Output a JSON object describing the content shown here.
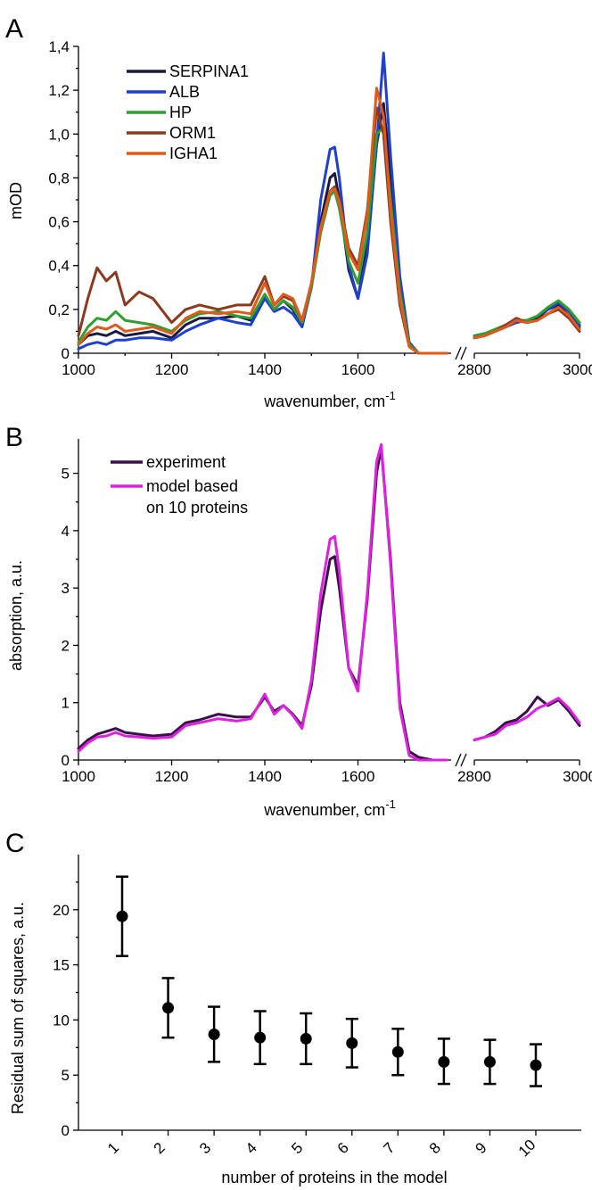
{
  "chart_data": [
    {
      "panel": "A",
      "type": "line",
      "xlabel": "wavenumber, cm",
      "xlabel_sup": "-1",
      "ylabel": "mOD",
      "xlim_left": [
        1000,
        1800
      ],
      "xlim_right": [
        2800,
        3000
      ],
      "ylim": [
        0,
        1.4
      ],
      "x_ticks_left": [
        1000,
        1200,
        1400,
        1600
      ],
      "x_ticks_right": [
        2800,
        3000
      ],
      "x_tick_labels": [
        "1000",
        "1200",
        "1400",
        "1600",
        "2800",
        "3000"
      ],
      "y_ticks": [
        0,
        0.2,
        0.4,
        0.6,
        0.8,
        1.0,
        1.2,
        1.4
      ],
      "y_tick_labels": [
        "0",
        "0,2",
        "0,4",
        "0,6",
        "0,8",
        "1,0",
        "1,2",
        "1,4"
      ],
      "axis_break": true,
      "legend": "top-left",
      "series": [
        {
          "name": "SERPINA1",
          "color": "#1a1a40",
          "x": [
            1000,
            1020,
            1040,
            1060,
            1080,
            1100,
            1130,
            1160,
            1200,
            1230,
            1260,
            1300,
            1340,
            1370,
            1400,
            1420,
            1440,
            1460,
            1480,
            1500,
            1520,
            1540,
            1550,
            1560,
            1580,
            1600,
            1620,
            1640,
            1655,
            1670,
            1690,
            1710,
            1730,
            1760,
            1790
          ],
          "y": [
            0.04,
            0.08,
            0.09,
            0.08,
            0.1,
            0.08,
            0.09,
            0.1,
            0.07,
            0.13,
            0.16,
            0.16,
            0.17,
            0.15,
            0.26,
            0.2,
            0.24,
            0.2,
            0.13,
            0.3,
            0.6,
            0.8,
            0.82,
            0.7,
            0.38,
            0.25,
            0.5,
            0.95,
            1.14,
            0.8,
            0.3,
            0.04,
            0.0,
            0.0,
            0.0
          ],
          "x2": [
            2800,
            2820,
            2840,
            2860,
            2880,
            2900,
            2920,
            2940,
            2960,
            2980,
            3000
          ],
          "y2": [
            0.07,
            0.08,
            0.1,
            0.12,
            0.15,
            0.14,
            0.16,
            0.2,
            0.22,
            0.17,
            0.12
          ]
        },
        {
          "name": "ALB",
          "color": "#1f3fd0",
          "x": [
            1000,
            1020,
            1040,
            1060,
            1080,
            1100,
            1130,
            1160,
            1200,
            1230,
            1260,
            1300,
            1340,
            1370,
            1400,
            1420,
            1440,
            1460,
            1480,
            1500,
            1520,
            1540,
            1550,
            1560,
            1580,
            1600,
            1620,
            1640,
            1655,
            1670,
            1690,
            1710,
            1730,
            1760,
            1790
          ],
          "y": [
            0.02,
            0.04,
            0.05,
            0.04,
            0.06,
            0.06,
            0.07,
            0.07,
            0.06,
            0.1,
            0.13,
            0.16,
            0.14,
            0.13,
            0.25,
            0.19,
            0.21,
            0.18,
            0.12,
            0.3,
            0.7,
            0.93,
            0.94,
            0.8,
            0.4,
            0.25,
            0.45,
            0.95,
            1.37,
            0.9,
            0.35,
            0.05,
            0.0,
            0.0,
            0.0
          ],
          "x2": [
            2800,
            2820,
            2840,
            2860,
            2880,
            2900,
            2920,
            2940,
            2960,
            2980,
            3000
          ],
          "y2": [
            0.08,
            0.09,
            0.1,
            0.12,
            0.14,
            0.15,
            0.17,
            0.2,
            0.23,
            0.19,
            0.13
          ]
        },
        {
          "name": "HP",
          "color": "#2fa02f",
          "x": [
            1000,
            1020,
            1040,
            1060,
            1080,
            1100,
            1130,
            1160,
            1200,
            1230,
            1260,
            1300,
            1340,
            1370,
            1400,
            1420,
            1440,
            1460,
            1480,
            1500,
            1520,
            1540,
            1550,
            1560,
            1580,
            1600,
            1620,
            1640,
            1655,
            1670,
            1690,
            1710,
            1730,
            1760,
            1790
          ],
          "y": [
            0.05,
            0.12,
            0.16,
            0.15,
            0.19,
            0.15,
            0.14,
            0.13,
            0.1,
            0.15,
            0.18,
            0.19,
            0.17,
            0.16,
            0.27,
            0.2,
            0.24,
            0.21,
            0.14,
            0.3,
            0.55,
            0.72,
            0.74,
            0.66,
            0.42,
            0.32,
            0.55,
            1.0,
            1.03,
            0.7,
            0.28,
            0.04,
            0.0,
            0.0,
            0.0
          ],
          "x2": [
            2800,
            2820,
            2840,
            2860,
            2880,
            2900,
            2920,
            2940,
            2960,
            2980,
            3000
          ],
          "y2": [
            0.08,
            0.09,
            0.11,
            0.13,
            0.15,
            0.15,
            0.17,
            0.21,
            0.24,
            0.2,
            0.14
          ]
        },
        {
          "name": "ORM1",
          "color": "#8b3a1e",
          "x": [
            1000,
            1020,
            1040,
            1060,
            1080,
            1100,
            1130,
            1160,
            1200,
            1230,
            1260,
            1300,
            1340,
            1370,
            1400,
            1420,
            1440,
            1460,
            1480,
            1500,
            1520,
            1540,
            1550,
            1560,
            1580,
            1600,
            1620,
            1640,
            1655,
            1670,
            1690,
            1710,
            1730,
            1760,
            1790
          ],
          "y": [
            0.08,
            0.25,
            0.39,
            0.33,
            0.37,
            0.22,
            0.28,
            0.25,
            0.14,
            0.2,
            0.22,
            0.2,
            0.22,
            0.22,
            0.35,
            0.22,
            0.26,
            0.24,
            0.15,
            0.32,
            0.58,
            0.74,
            0.76,
            0.7,
            0.48,
            0.4,
            0.65,
            1.12,
            1.0,
            0.6,
            0.22,
            0.03,
            0.0,
            0.0,
            0.0
          ],
          "x2": [
            2800,
            2820,
            2840,
            2860,
            2880,
            2900,
            2920,
            2940,
            2960,
            2980,
            3000
          ],
          "y2": [
            0.07,
            0.08,
            0.1,
            0.13,
            0.16,
            0.14,
            0.15,
            0.18,
            0.2,
            0.16,
            0.1
          ]
        },
        {
          "name": "IGHA1",
          "color": "#e05a1a",
          "x": [
            1000,
            1020,
            1040,
            1060,
            1080,
            1100,
            1130,
            1160,
            1200,
            1230,
            1260,
            1300,
            1340,
            1370,
            1400,
            1420,
            1440,
            1460,
            1480,
            1500,
            1520,
            1540,
            1550,
            1560,
            1580,
            1600,
            1620,
            1640,
            1655,
            1670,
            1690,
            1710,
            1730,
            1760,
            1790
          ],
          "y": [
            0.04,
            0.09,
            0.12,
            0.11,
            0.13,
            0.1,
            0.11,
            0.12,
            0.09,
            0.16,
            0.19,
            0.18,
            0.19,
            0.18,
            0.32,
            0.22,
            0.27,
            0.25,
            0.15,
            0.32,
            0.57,
            0.74,
            0.75,
            0.69,
            0.46,
            0.38,
            0.63,
            1.21,
            1.08,
            0.65,
            0.25,
            0.03,
            0.0,
            0.0,
            0.0
          ],
          "x2": [
            2800,
            2820,
            2840,
            2860,
            2880,
            2900,
            2920,
            2940,
            2960,
            2980,
            3000
          ],
          "y2": [
            0.07,
            0.08,
            0.1,
            0.12,
            0.15,
            0.14,
            0.15,
            0.18,
            0.21,
            0.17,
            0.11
          ]
        }
      ]
    },
    {
      "panel": "B",
      "type": "line",
      "xlabel": "wavenumber, cm",
      "xlabel_sup": "-1",
      "ylabel": "absorption, a.u.",
      "xlim_left": [
        1000,
        1800
      ],
      "xlim_right": [
        2800,
        3000
      ],
      "ylim": [
        0,
        5.6
      ],
      "x_ticks_left": [
        1000,
        1200,
        1400,
        1600
      ],
      "x_ticks_right": [
        2800,
        3000
      ],
      "x_tick_labels": [
        "1000",
        "1200",
        "1400",
        "1600",
        "2800",
        "3000"
      ],
      "y_ticks": [
        0,
        1,
        2,
        3,
        4,
        5
      ],
      "y_tick_labels": [
        "0",
        "1",
        "2",
        "3",
        "4",
        "5"
      ],
      "axis_break": true,
      "legend": "top-left",
      "series": [
        {
          "name": "experiment",
          "color": "#3a0f4a",
          "x": [
            1000,
            1020,
            1040,
            1060,
            1080,
            1100,
            1130,
            1160,
            1200,
            1230,
            1260,
            1300,
            1340,
            1370,
            1400,
            1420,
            1440,
            1460,
            1480,
            1500,
            1520,
            1540,
            1550,
            1560,
            1580,
            1600,
            1620,
            1640,
            1650,
            1670,
            1690,
            1710,
            1730,
            1760,
            1790
          ],
          "y": [
            0.2,
            0.35,
            0.45,
            0.5,
            0.55,
            0.48,
            0.45,
            0.42,
            0.45,
            0.65,
            0.7,
            0.8,
            0.75,
            0.75,
            1.1,
            0.85,
            0.95,
            0.8,
            0.6,
            1.3,
            2.6,
            3.5,
            3.55,
            3.0,
            1.6,
            1.3,
            2.8,
            5.0,
            5.45,
            3.5,
            1.0,
            0.15,
            0.05,
            0.0,
            0.0
          ],
          "x2": [
            2800,
            2820,
            2840,
            2860,
            2880,
            2900,
            2920,
            2940,
            2960,
            2980,
            3000
          ],
          "y2": [
            0.35,
            0.4,
            0.5,
            0.65,
            0.7,
            0.85,
            1.1,
            0.95,
            1.05,
            0.85,
            0.6
          ]
        },
        {
          "name": "model based on 10 proteins",
          "color": "#e020e0",
          "x": [
            1000,
            1020,
            1040,
            1060,
            1080,
            1100,
            1130,
            1160,
            1200,
            1230,
            1260,
            1300,
            1340,
            1370,
            1400,
            1420,
            1440,
            1460,
            1480,
            1500,
            1520,
            1540,
            1550,
            1560,
            1580,
            1600,
            1620,
            1640,
            1650,
            1670,
            1690,
            1710,
            1730,
            1760,
            1790
          ],
          "y": [
            0.15,
            0.3,
            0.4,
            0.42,
            0.48,
            0.42,
            0.4,
            0.38,
            0.4,
            0.6,
            0.65,
            0.72,
            0.68,
            0.72,
            1.15,
            0.8,
            0.95,
            0.78,
            0.55,
            1.4,
            2.9,
            3.85,
            3.9,
            3.3,
            1.6,
            1.2,
            2.9,
            5.2,
            5.5,
            3.4,
            0.9,
            0.08,
            0.0,
            0.0,
            0.0
          ],
          "x2": [
            2800,
            2820,
            2840,
            2860,
            2880,
            2900,
            2920,
            2940,
            2960,
            2980,
            3000
          ],
          "y2": [
            0.35,
            0.4,
            0.45,
            0.6,
            0.65,
            0.75,
            0.9,
            0.98,
            1.08,
            0.9,
            0.65
          ]
        }
      ]
    },
    {
      "panel": "C",
      "type": "scatter",
      "xlabel": "number of proteins in the model",
      "ylabel": "Residual sum of squares, a.u.",
      "ylim": [
        0,
        25
      ],
      "y_ticks": [
        0,
        5,
        10,
        15,
        20
      ],
      "y_tick_labels": [
        "0",
        "5",
        "10",
        "15",
        "20"
      ],
      "categories": [
        "1",
        "2",
        "3",
        "4",
        "5",
        "6",
        "7",
        "8",
        "9",
        "10"
      ],
      "values": [
        19.4,
        11.1,
        8.7,
        8.4,
        8.3,
        7.9,
        7.1,
        6.2,
        6.2,
        5.9
      ],
      "error_low": [
        15.8,
        8.4,
        6.2,
        6.0,
        6.0,
        5.7,
        5.0,
        4.2,
        4.2,
        4.0
      ],
      "error_high": [
        23.0,
        13.8,
        11.2,
        10.8,
        10.6,
        10.1,
        9.2,
        8.3,
        8.2,
        7.8
      ]
    }
  ]
}
